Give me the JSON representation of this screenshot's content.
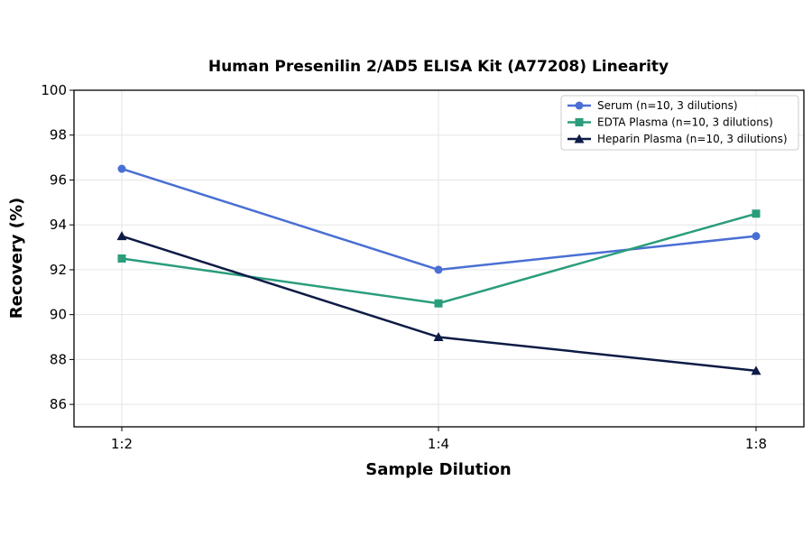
{
  "chart_data": {
    "type": "line",
    "title": "Human Presenilin 2/AD5 ELISA Kit (A77208) Linearity",
    "xlabel": "Sample Dilution",
    "ylabel": "Recovery (%)",
    "categories": [
      "1:2",
      "1:4",
      "1:8"
    ],
    "ylim": [
      85,
      100
    ],
    "yticks": [
      86,
      88,
      90,
      92,
      94,
      96,
      98,
      100
    ],
    "grid": true,
    "legend_position": "top-right",
    "series": [
      {
        "name": "Serum (n=10, 3 dilutions)",
        "values": [
          96.5,
          92.0,
          93.5
        ],
        "color": "#4a6fd4",
        "marker": "circle"
      },
      {
        "name": "EDTA Plasma (n=10, 3 dilutions)",
        "values": [
          92.5,
          90.5,
          94.5
        ],
        "color": "#2a9d7c",
        "marker": "square"
      },
      {
        "name": "Heparin Plasma (n=10, 3 dilutions)",
        "values": [
          93.5,
          89.0,
          87.5
        ],
        "color": "#0d1b45",
        "marker": "triangle"
      }
    ]
  }
}
